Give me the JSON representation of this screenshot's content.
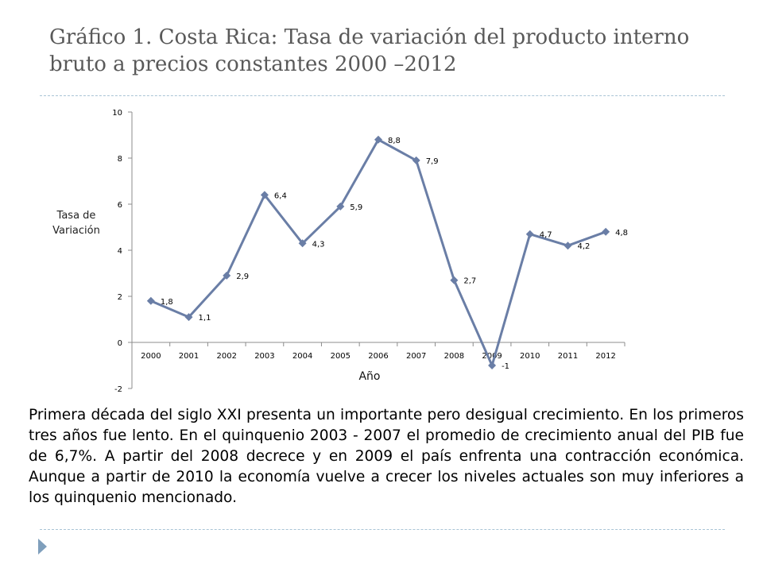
{
  "slide": {
    "title_line1": "Gráfico 1. Costa Rica: Tasa de variación del producto interno",
    "title_line2": "bruto a precios constantes 2000 –2012",
    "body": "Primera década del siglo XXI presenta un importante pero desigual crecimiento. En los primeros tres años fue lento.  En el  quinquenio 2003 - 2007 el promedio de crecimiento anual del PIB fue de 6,7%.  A partir del  2008 decrece y en 2009 el país enfrenta una contracción económica.  Aunque a partir de 2010 la economía vuelve a crecer los niveles actuales son muy inferiores a los  quinquenio mencionado."
  },
  "chart_data": {
    "type": "line",
    "title": "",
    "xlabel": "Año",
    "ylabel_line1": "Tasa de",
    "ylabel_line2": "Variación",
    "x": [
      "2000",
      "2001",
      "2002",
      "2003",
      "2004",
      "2005",
      "2006",
      "2007",
      "2008",
      "2009",
      "2010",
      "2011",
      "2012"
    ],
    "series": [
      {
        "values": [
          1.8,
          1.1,
          2.9,
          6.4,
          4.3,
          5.9,
          8.8,
          7.9,
          2.7,
          -1,
          4.7,
          4.2,
          4.8
        ],
        "labels": [
          "1,8",
          "1,1",
          "2,9",
          "6,4",
          "4,3",
          "5,9",
          "8,8",
          "7,9",
          "2,7",
          "-1",
          "4,7",
          "4,2",
          "4,8"
        ],
        "color": "#6a7ea6"
      }
    ],
    "ylim": [
      -2,
      10
    ],
    "yticks": [
      -2,
      0,
      2,
      4,
      6,
      8,
      10
    ],
    "grid": false,
    "legend": "none",
    "marker": "diamond"
  },
  "colors": {
    "line": "#6a7ea6",
    "divider": "#a9c4d6",
    "bullet": "#7f9fbc",
    "title": "#595959"
  }
}
